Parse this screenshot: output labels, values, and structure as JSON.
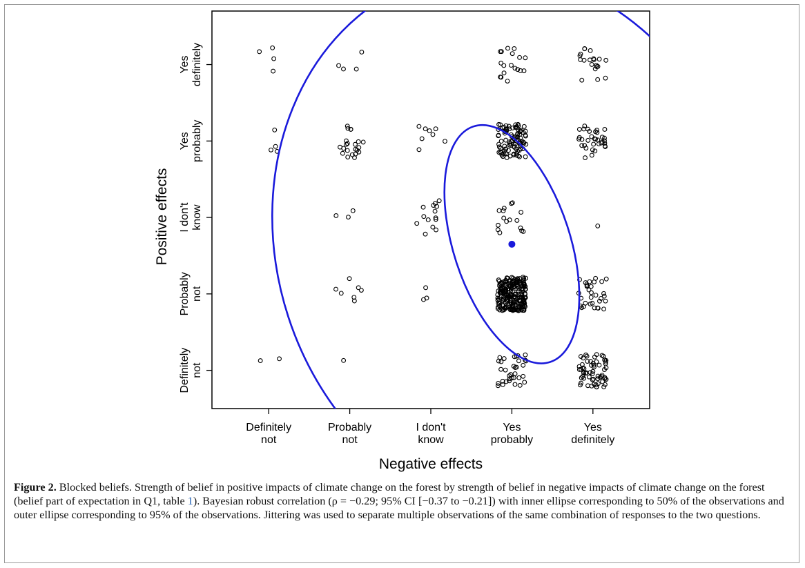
{
  "chart_data": {
    "type": "scatter",
    "xlabel": "Negative effects",
    "ylabel": "Positive effects",
    "x_categories": [
      [
        "Definitely",
        "not"
      ],
      [
        "Probably",
        "not"
      ],
      [
        "I don't",
        "know"
      ],
      [
        "Yes",
        "probably"
      ],
      [
        "Yes",
        "definitely"
      ]
    ],
    "y_categories": [
      [
        "Definitely",
        "not"
      ],
      [
        "Probably",
        "not"
      ],
      [
        "I don't",
        "know"
      ],
      [
        "Yes",
        "probably"
      ],
      [
        "Yes",
        "definitely"
      ]
    ],
    "xlim": [
      0.3,
      5.7
    ],
    "ylim": [
      0.5,
      5.7
    ],
    "jitter": 0.22,
    "point_color": "#000000",
    "ellipse_color": "#1a1adb",
    "center": {
      "x": 4.0,
      "y": 2.65
    },
    "ellipses": [
      {
        "label": "50%",
        "cx": 4.0,
        "cy": 2.65,
        "rx_data": 0.72,
        "ry_data": 1.62,
        "rotation_deg": -18
      },
      {
        "label": "95%",
        "cx": 4.0,
        "cy": 2.65,
        "rx_data": 2.9,
        "ry_data": 3.65,
        "rotation_deg": -18
      }
    ],
    "counts": [
      {
        "x": 1,
        "y": 5,
        "n": 4
      },
      {
        "x": 1,
        "y": 4,
        "n": 4
      },
      {
        "x": 1,
        "y": 1,
        "n": 2
      },
      {
        "x": 2,
        "y": 5,
        "n": 4
      },
      {
        "x": 2,
        "y": 4,
        "n": 22
      },
      {
        "x": 2,
        "y": 3,
        "n": 3
      },
      {
        "x": 2,
        "y": 2,
        "n": 7
      },
      {
        "x": 2,
        "y": 1,
        "n": 1
      },
      {
        "x": 3,
        "y": 4,
        "n": 8
      },
      {
        "x": 3,
        "y": 3,
        "n": 14
      },
      {
        "x": 3,
        "y": 2,
        "n": 3
      },
      {
        "x": 4,
        "y": 5,
        "n": 18
      },
      {
        "x": 4,
        "y": 4,
        "n": 95
      },
      {
        "x": 4,
        "y": 3,
        "n": 16
      },
      {
        "x": 4,
        "y": 2,
        "n": 230
      },
      {
        "x": 4,
        "y": 1,
        "n": 34
      },
      {
        "x": 5,
        "y": 5,
        "n": 20
      },
      {
        "x": 5,
        "y": 4,
        "n": 34
      },
      {
        "x": 5,
        "y": 3,
        "n": 1
      },
      {
        "x": 5,
        "y": 2,
        "n": 32
      },
      {
        "x": 5,
        "y": 1,
        "n": 62
      }
    ]
  },
  "caption": {
    "lead": "Figure 2.",
    "text_1": " Blocked beliefs. Strength of belief in positive impacts of climate change on the forest by strength of belief in negative impacts of climate change on the forest (belief part of expectation in Q1, table ",
    "table_ref": "1",
    "text_2": "). Bayesian robust correlation (ρ = −0.29; 95% CI [−0.37 to −0.21]) with inner ellipse corresponding to 50% of the observations and outer ellipse corresponding to 95% of the observations. Jittering was used to separate multiple observations of the same combination of responses to the two questions."
  }
}
